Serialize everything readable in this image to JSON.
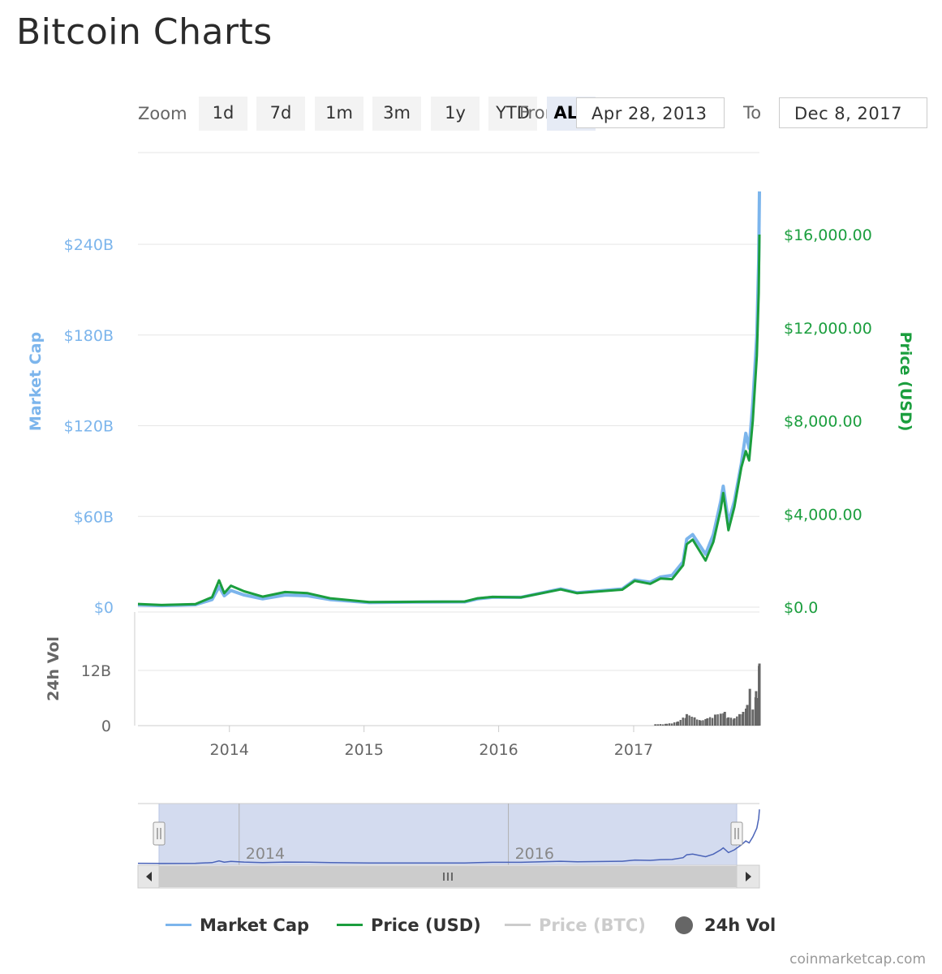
{
  "page": {
    "title": "Bitcoin Charts",
    "credits": "coinmarketcap.com"
  },
  "toolbar": {
    "zoom_label": "Zoom",
    "buttons": [
      {
        "label": "1d",
        "active": false
      },
      {
        "label": "7d",
        "active": false
      },
      {
        "label": "1m",
        "active": false
      },
      {
        "label": "3m",
        "active": false
      },
      {
        "label": "1y",
        "active": false
      },
      {
        "label": "YTD",
        "active": false
      },
      {
        "label": "ALL",
        "active": true
      }
    ],
    "from_label": "From",
    "from_date": "Apr 28, 2013",
    "to_label": "To",
    "to_date": "Dec 8, 2017"
  },
  "colors": {
    "market_cap": "#7cb5ec",
    "price_usd": "#1b9e3e",
    "price_btc": "#cccccc",
    "volume": "#666666",
    "navigator_mask": "#d3dbef",
    "navigator_line": "#4a63b8"
  },
  "chart_data": {
    "type": "line",
    "x_range": [
      "2013-04-28",
      "2017-12-08"
    ],
    "x_ticks": [
      "2014",
      "2015",
      "2016",
      "2017"
    ],
    "navigator_ticks": [
      "2014",
      "2016"
    ],
    "left_axis": {
      "label": "Market Cap",
      "ticks": [
        {
          "value": 0,
          "label": "$0"
        },
        {
          "value": 60,
          "label": "$60B"
        },
        {
          "value": 120,
          "label": "$120B"
        },
        {
          "value": 180,
          "label": "$180B"
        },
        {
          "value": 240,
          "label": "$240B"
        }
      ]
    },
    "right_axis": {
      "label": "Price (USD)",
      "ticks": [
        {
          "value": 0,
          "label": "$0.0"
        },
        {
          "value": 4000,
          "label": "$4,000.00"
        },
        {
          "value": 8000,
          "label": "$8,000.00"
        },
        {
          "value": 12000,
          "label": "$12,000.00"
        },
        {
          "value": 16000,
          "label": "$16,000.00"
        }
      ]
    },
    "volume_axis": {
      "label": "24h Vol",
      "ticks": [
        {
          "value": 0,
          "label": "0"
        },
        {
          "value": 12,
          "label": "12B"
        }
      ]
    },
    "series": [
      {
        "name": "Market Cap",
        "key": "market_cap",
        "unit": "B USD",
        "points": [
          [
            "2013-04-28",
            1.5
          ],
          [
            "2013-07-01",
            1.0
          ],
          [
            "2013-10-01",
            1.6
          ],
          [
            "2013-11-15",
            5.0
          ],
          [
            "2013-12-04",
            13.5
          ],
          [
            "2013-12-18",
            7.5
          ],
          [
            "2014-01-05",
            11.0
          ],
          [
            "2014-02-10",
            8.0
          ],
          [
            "2014-04-01",
            5.5
          ],
          [
            "2014-06-01",
            8.0
          ],
          [
            "2014-08-01",
            7.5
          ],
          [
            "2014-10-01",
            5.0
          ],
          [
            "2015-01-15",
            3.0
          ],
          [
            "2015-06-01",
            3.4
          ],
          [
            "2015-10-01",
            3.5
          ],
          [
            "2015-11-05",
            5.5
          ],
          [
            "2015-12-15",
            6.5
          ],
          [
            "2016-03-01",
            6.5
          ],
          [
            "2016-06-17",
            12.0
          ],
          [
            "2016-08-01",
            9.5
          ],
          [
            "2016-12-01",
            12.0
          ],
          [
            "2017-01-04",
            18.0
          ],
          [
            "2017-02-15",
            16.5
          ],
          [
            "2017-03-15",
            20.0
          ],
          [
            "2017-04-15",
            21.0
          ],
          [
            "2017-05-15",
            30.0
          ],
          [
            "2017-05-25",
            45.0
          ],
          [
            "2017-06-10",
            48.0
          ],
          [
            "2017-07-15",
            35.0
          ],
          [
            "2017-08-05",
            48.0
          ],
          [
            "2017-08-25",
            70.0
          ],
          [
            "2017-09-01",
            80.0
          ],
          [
            "2017-09-15",
            56.0
          ],
          [
            "2017-10-01",
            70.0
          ],
          [
            "2017-10-20",
            95.0
          ],
          [
            "2017-11-01",
            115.0
          ],
          [
            "2017-11-10",
            105.0
          ],
          [
            "2017-11-20",
            135.0
          ],
          [
            "2017-12-01",
            180.0
          ],
          [
            "2017-12-06",
            230.0
          ],
          [
            "2017-12-08",
            275.0
          ]
        ]
      },
      {
        "name": "Price (USD)",
        "key": "price_usd",
        "unit": "USD",
        "points": [
          [
            "2013-04-28",
            135
          ],
          [
            "2013-07-01",
            90
          ],
          [
            "2013-10-01",
            130
          ],
          [
            "2013-11-15",
            430
          ],
          [
            "2013-12-04",
            1150
          ],
          [
            "2013-12-18",
            600
          ],
          [
            "2014-01-05",
            920
          ],
          [
            "2014-02-10",
            680
          ],
          [
            "2014-04-01",
            450
          ],
          [
            "2014-06-01",
            650
          ],
          [
            "2014-08-01",
            600
          ],
          [
            "2014-10-01",
            380
          ],
          [
            "2015-01-15",
            220
          ],
          [
            "2015-06-01",
            230
          ],
          [
            "2015-10-01",
            240
          ],
          [
            "2015-11-05",
            380
          ],
          [
            "2015-12-15",
            440
          ],
          [
            "2016-03-01",
            420
          ],
          [
            "2016-06-17",
            760
          ],
          [
            "2016-08-01",
            600
          ],
          [
            "2016-12-01",
            750
          ],
          [
            "2017-01-04",
            1130
          ],
          [
            "2017-02-15",
            1000
          ],
          [
            "2017-03-15",
            1230
          ],
          [
            "2017-04-15",
            1200
          ],
          [
            "2017-05-15",
            1800
          ],
          [
            "2017-05-25",
            2700
          ],
          [
            "2017-06-10",
            2900
          ],
          [
            "2017-07-15",
            2000
          ],
          [
            "2017-08-05",
            2800
          ],
          [
            "2017-08-25",
            4200
          ],
          [
            "2017-09-01",
            4900
          ],
          [
            "2017-09-15",
            3300
          ],
          [
            "2017-10-01",
            4300
          ],
          [
            "2017-10-20",
            6000
          ],
          [
            "2017-11-01",
            6700
          ],
          [
            "2017-11-10",
            6300
          ],
          [
            "2017-11-20",
            8000
          ],
          [
            "2017-12-01",
            10800
          ],
          [
            "2017-12-06",
            13500
          ],
          [
            "2017-12-08",
            16000
          ]
        ]
      },
      {
        "name": "Price (BTC)",
        "key": "price_btc",
        "hidden": true,
        "points": []
      },
      {
        "name": "24h Vol",
        "key": "volume",
        "unit": "B USD",
        "points": [
          [
            "2017-03-01",
            0.3
          ],
          [
            "2017-04-01",
            0.4
          ],
          [
            "2017-05-01",
            0.9
          ],
          [
            "2017-05-25",
            2.5
          ],
          [
            "2017-06-15",
            1.8
          ],
          [
            "2017-07-01",
            1.1
          ],
          [
            "2017-07-20",
            1.6
          ],
          [
            "2017-08-10",
            2.4
          ],
          [
            "2017-08-25",
            2.6
          ],
          [
            "2017-09-05",
            3.0
          ],
          [
            "2017-09-15",
            1.8
          ],
          [
            "2017-10-01",
            1.6
          ],
          [
            "2017-10-15",
            2.5
          ],
          [
            "2017-10-25",
            3.0
          ],
          [
            "2017-11-05",
            4.5
          ],
          [
            "2017-11-12",
            8.0
          ],
          [
            "2017-11-20",
            3.5
          ],
          [
            "2017-11-29",
            7.5
          ],
          [
            "2017-12-04",
            6.0
          ],
          [
            "2017-12-07",
            13.0
          ],
          [
            "2017-12-08",
            13.5
          ]
        ]
      }
    ],
    "legend": [
      {
        "label": "Market Cap",
        "key": "market_cap",
        "marker": "line",
        "visible": true
      },
      {
        "label": "Price (USD)",
        "key": "price_usd",
        "marker": "line",
        "visible": true
      },
      {
        "label": "Price (BTC)",
        "key": "price_btc",
        "marker": "line",
        "visible": false
      },
      {
        "label": "24h Vol",
        "key": "volume",
        "marker": "circle",
        "visible": true
      }
    ],
    "legend_position": "bottom",
    "grid": true
  }
}
